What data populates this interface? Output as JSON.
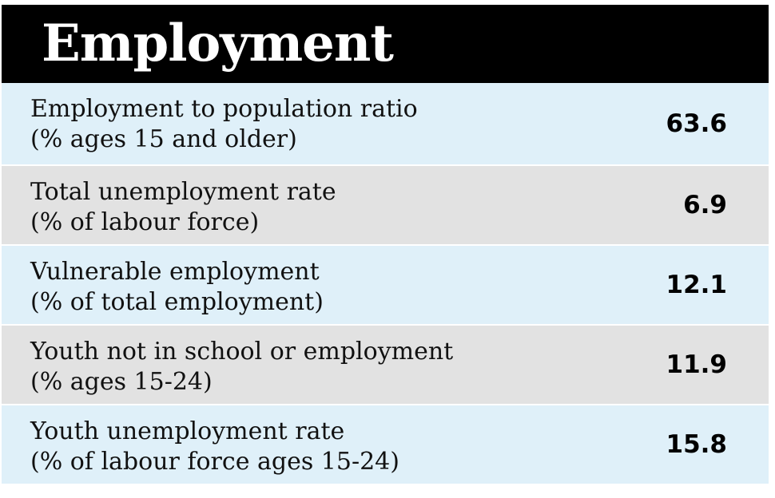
{
  "title": "Employment",
  "rows": [
    {
      "line1": "Employment to population ratio",
      "line2": "(% ages 15 and older)",
      "value": "63.6"
    },
    {
      "line1": "Total unemployment rate",
      "line2": "(% of labour force)",
      "value": "6.9"
    },
    {
      "line1": "Vulnerable employment",
      "line2": "(% of total employment)",
      "value": "12.1"
    },
    {
      "line1": "Youth not in school or employment",
      "line2": "(% ages 15-24)",
      "value": "11.9"
    },
    {
      "line1": "Youth unemployment rate",
      "line2": "(% of labour force ages 15-24)",
      "value": "15.8"
    }
  ],
  "colors": {
    "header_bg": "#000000",
    "row_light": "#dff0f9",
    "row_gray": "#e2e2e2"
  }
}
